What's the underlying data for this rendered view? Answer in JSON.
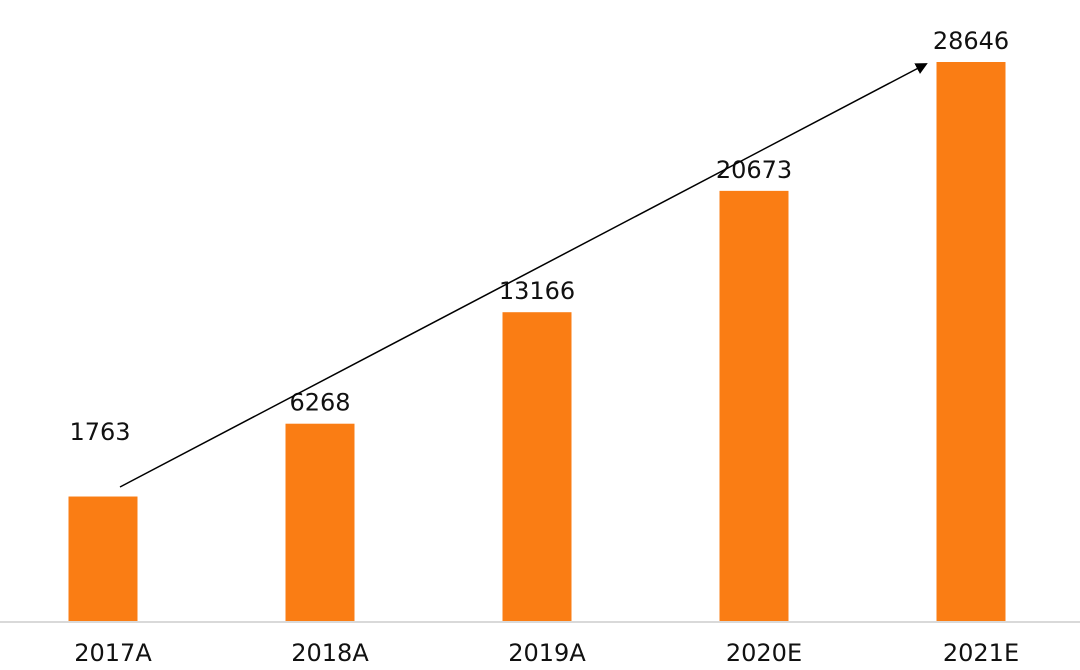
{
  "chart_data": {
    "type": "bar",
    "categories": [
      "2017A",
      "2018A",
      "2019A",
      "2020E",
      "2021E"
    ],
    "values": [
      1763,
      6268,
      13166,
      20673,
      28646
    ],
    "title": "",
    "xlabel": "",
    "ylabel": "",
    "ylim": [
      -6000,
      28646
    ],
    "grid": false,
    "legend": "none",
    "data_labels": [
      "1763",
      "6268",
      "13166",
      "20673",
      "28646"
    ],
    "annotations": [
      {
        "type": "trend-arrow",
        "from_category": "2017A",
        "to_category": "2021E"
      }
    ]
  },
  "colors": {
    "bar": "#FA7D14",
    "axis": "#D9D9D9",
    "text": "#111111",
    "arrow": "#000000"
  }
}
